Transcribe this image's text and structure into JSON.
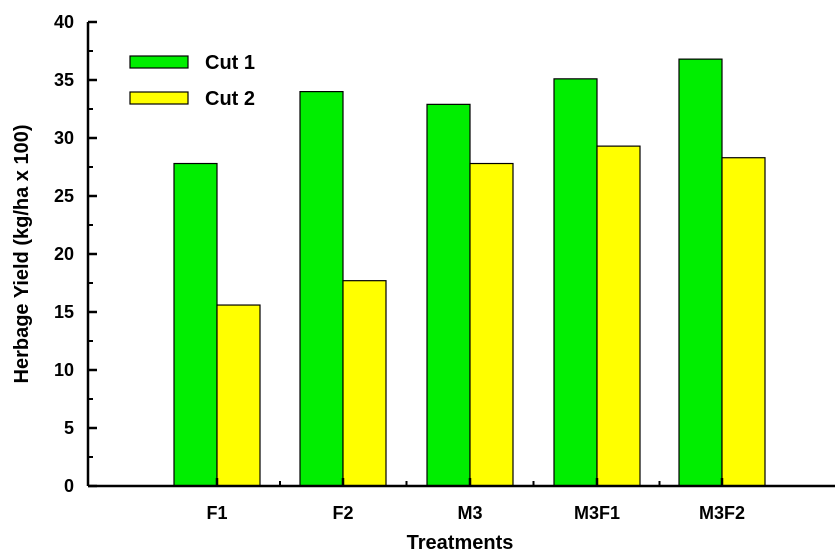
{
  "chart_data": {
    "type": "bar",
    "categories": [
      "F1",
      "F2",
      "M3",
      "M3F1",
      "M3F2"
    ],
    "series": [
      {
        "name": "Cut 1",
        "color": "#00ee00",
        "values": [
          27.8,
          34.0,
          32.9,
          35.1,
          36.8
        ]
      },
      {
        "name": "Cut 2",
        "color": "#ffff00",
        "values": [
          15.6,
          17.7,
          27.8,
          29.3,
          28.3
        ]
      }
    ],
    "xlabel": "Treatments",
    "ylabel": "Herbage Yield (kg/ha x 100)",
    "ylim": [
      0,
      40
    ],
    "yticks": [
      0,
      5,
      10,
      15,
      20,
      25,
      30,
      35,
      40
    ],
    "grid": false,
    "legend_position": "top-left"
  }
}
